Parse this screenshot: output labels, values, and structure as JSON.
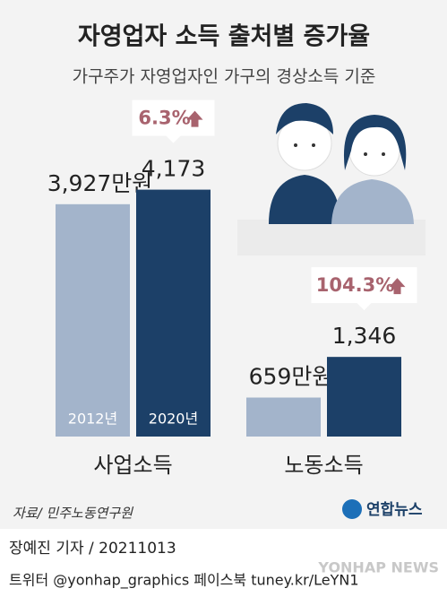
{
  "chart_data": {
    "type": "bar",
    "title": "자영업자 소득 출처별 증가율",
    "subtitle": "가구주가 자영업자인 가구의 경상소득 기준",
    "categories": [
      "사업소득",
      "노동소득"
    ],
    "series": [
      {
        "name": "2012년",
        "color": "#a3b4cb",
        "values": [
          3927,
          659
        ],
        "value_labels": [
          "3,927만원",
          "659만원"
        ]
      },
      {
        "name": "2020년",
        "color": "#1c4068",
        "values": [
          4173,
          1346
        ],
        "value_labels": [
          "4,173",
          "1,346"
        ]
      }
    ],
    "annotations": [
      "6.3%",
      "104.3%"
    ],
    "source": "자료/ 민주노동연구원",
    "logo": "연합뉴스",
    "byline": "장예진 기자 / 20211013",
    "social": "트위터 @yonhap_graphics  페이스북 tuney.kr/LeYN1",
    "watermark": "YONHAP NEWS"
  }
}
